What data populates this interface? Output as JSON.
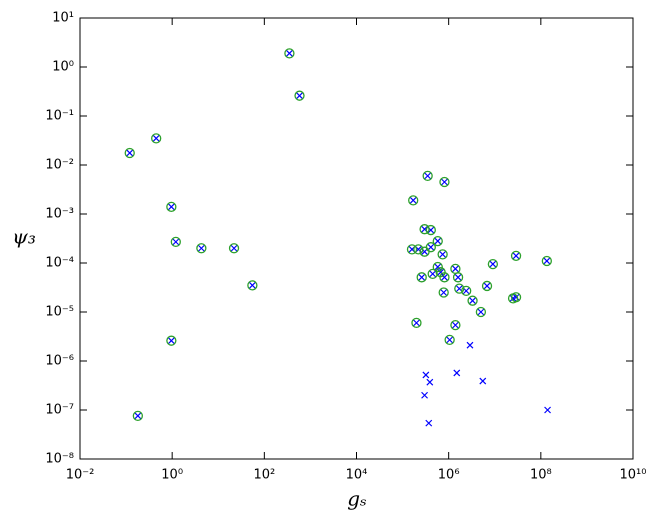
{
  "chart_data": {
    "type": "scatter",
    "x_label": "gₛ",
    "y_label": "ψ₃",
    "xscale": "log",
    "yscale": "log",
    "xlim": [
      0.01,
      10000000000
    ],
    "ylim": [
      1e-08,
      10
    ],
    "xticks": [
      {
        "value": 0.01,
        "label": "10⁻²"
      },
      {
        "value": 1,
        "label": "10⁰"
      },
      {
        "value": 100,
        "label": "10²"
      },
      {
        "value": 10000,
        "label": "10⁴"
      },
      {
        "value": 1000000,
        "label": "10⁶"
      },
      {
        "value": 100000000,
        "label": "10⁸"
      },
      {
        "value": 10000000000,
        "label": "10¹⁰"
      }
    ],
    "yticks": [
      {
        "value": 1e-08,
        "label": "10⁻⁸"
      },
      {
        "value": 1e-07,
        "label": "10⁻⁷"
      },
      {
        "value": 1e-06,
        "label": "10⁻⁶"
      },
      {
        "value": 1e-05,
        "label": "10⁻⁵"
      },
      {
        "value": 0.0001,
        "label": "10⁻⁴"
      },
      {
        "value": 0.001,
        "label": "10⁻³"
      },
      {
        "value": 0.01,
        "label": "10⁻²"
      },
      {
        "value": 0.1,
        "label": "10⁻¹"
      },
      {
        "value": 1,
        "label": "10⁰"
      },
      {
        "value": 10,
        "label": "10¹"
      }
    ],
    "grid": false,
    "series": [
      {
        "marker": "x",
        "color": "#0000ff",
        "x": [
          0.12,
          0.45,
          0.18,
          0.96,
          1.2,
          0.96,
          4.3,
          22,
          55,
          350,
          580,
          170000,
          350000,
          810000,
          300000,
          410000,
          160000,
          220000,
          300000,
          410000,
          580000,
          740000,
          260000,
          450000,
          580000,
          670000,
          810000,
          780000,
          1400000,
          1600000,
          1700000,
          2400000,
          3300000,
          5000000,
          6800000,
          9100000,
          200000,
          1400000,
          1050000,
          25000000,
          29000000,
          29000000,
          135000000,
          2900000,
          320000,
          390000,
          1500000,
          5500000,
          300000,
          370000,
          140000000
        ],
        "values": [
          0.0176,
          0.035,
          7.6e-08,
          0.0014,
          0.00027,
          2.6e-06,
          0.0002,
          0.0002,
          3.5e-05,
          1.9,
          0.26,
          0.0019,
          0.006,
          0.0045,
          0.00049,
          0.00047,
          0.00019,
          0.00019,
          0.00017,
          0.00021,
          0.00028,
          0.00015,
          5.1e-05,
          6e-05,
          8.3e-05,
          6.5e-05,
          5.1e-05,
          2.5e-05,
          7.6e-05,
          5.1e-05,
          3e-05,
          2.7e-05,
          1.7e-05,
          1e-05,
          3.4e-05,
          9.5e-05,
          6e-06,
          5.4e-06,
          2.7e-06,
          1.9e-05,
          2e-05,
          0.00014,
          0.00011,
          2.1e-06,
          5.2e-07,
          3.7e-07,
          5.7e-07,
          3.9e-07,
          2e-07,
          5.4e-08,
          1e-07
        ]
      },
      {
        "marker": "o",
        "color": "#2ca02c",
        "x": [
          0.12,
          0.45,
          0.18,
          0.96,
          1.2,
          0.96,
          4.3,
          22,
          55,
          350,
          580,
          170000,
          350000,
          810000,
          300000,
          410000,
          160000,
          220000,
          300000,
          410000,
          580000,
          740000,
          260000,
          450000,
          580000,
          670000,
          810000,
          780000,
          1400000,
          1600000,
          1700000,
          2400000,
          3300000,
          5000000,
          6800000,
          9100000,
          200000,
          1400000,
          1050000,
          25000000,
          29000000,
          29000000,
          135000000
        ],
        "values": [
          0.0176,
          0.035,
          7.6e-08,
          0.0014,
          0.00027,
          2.6e-06,
          0.0002,
          0.0002,
          3.5e-05,
          1.9,
          0.26,
          0.0019,
          0.006,
          0.0045,
          0.00049,
          0.00047,
          0.00019,
          0.00019,
          0.00017,
          0.00021,
          0.00028,
          0.00015,
          5.1e-05,
          6e-05,
          8.3e-05,
          6.5e-05,
          5.1e-05,
          2.5e-05,
          7.6e-05,
          5.1e-05,
          3e-05,
          2.7e-05,
          1.7e-05,
          1e-05,
          3.4e-05,
          9.5e-05,
          6e-06,
          5.4e-06,
          2.7e-06,
          1.9e-05,
          2e-05,
          0.00014,
          0.00011
        ]
      }
    ]
  }
}
